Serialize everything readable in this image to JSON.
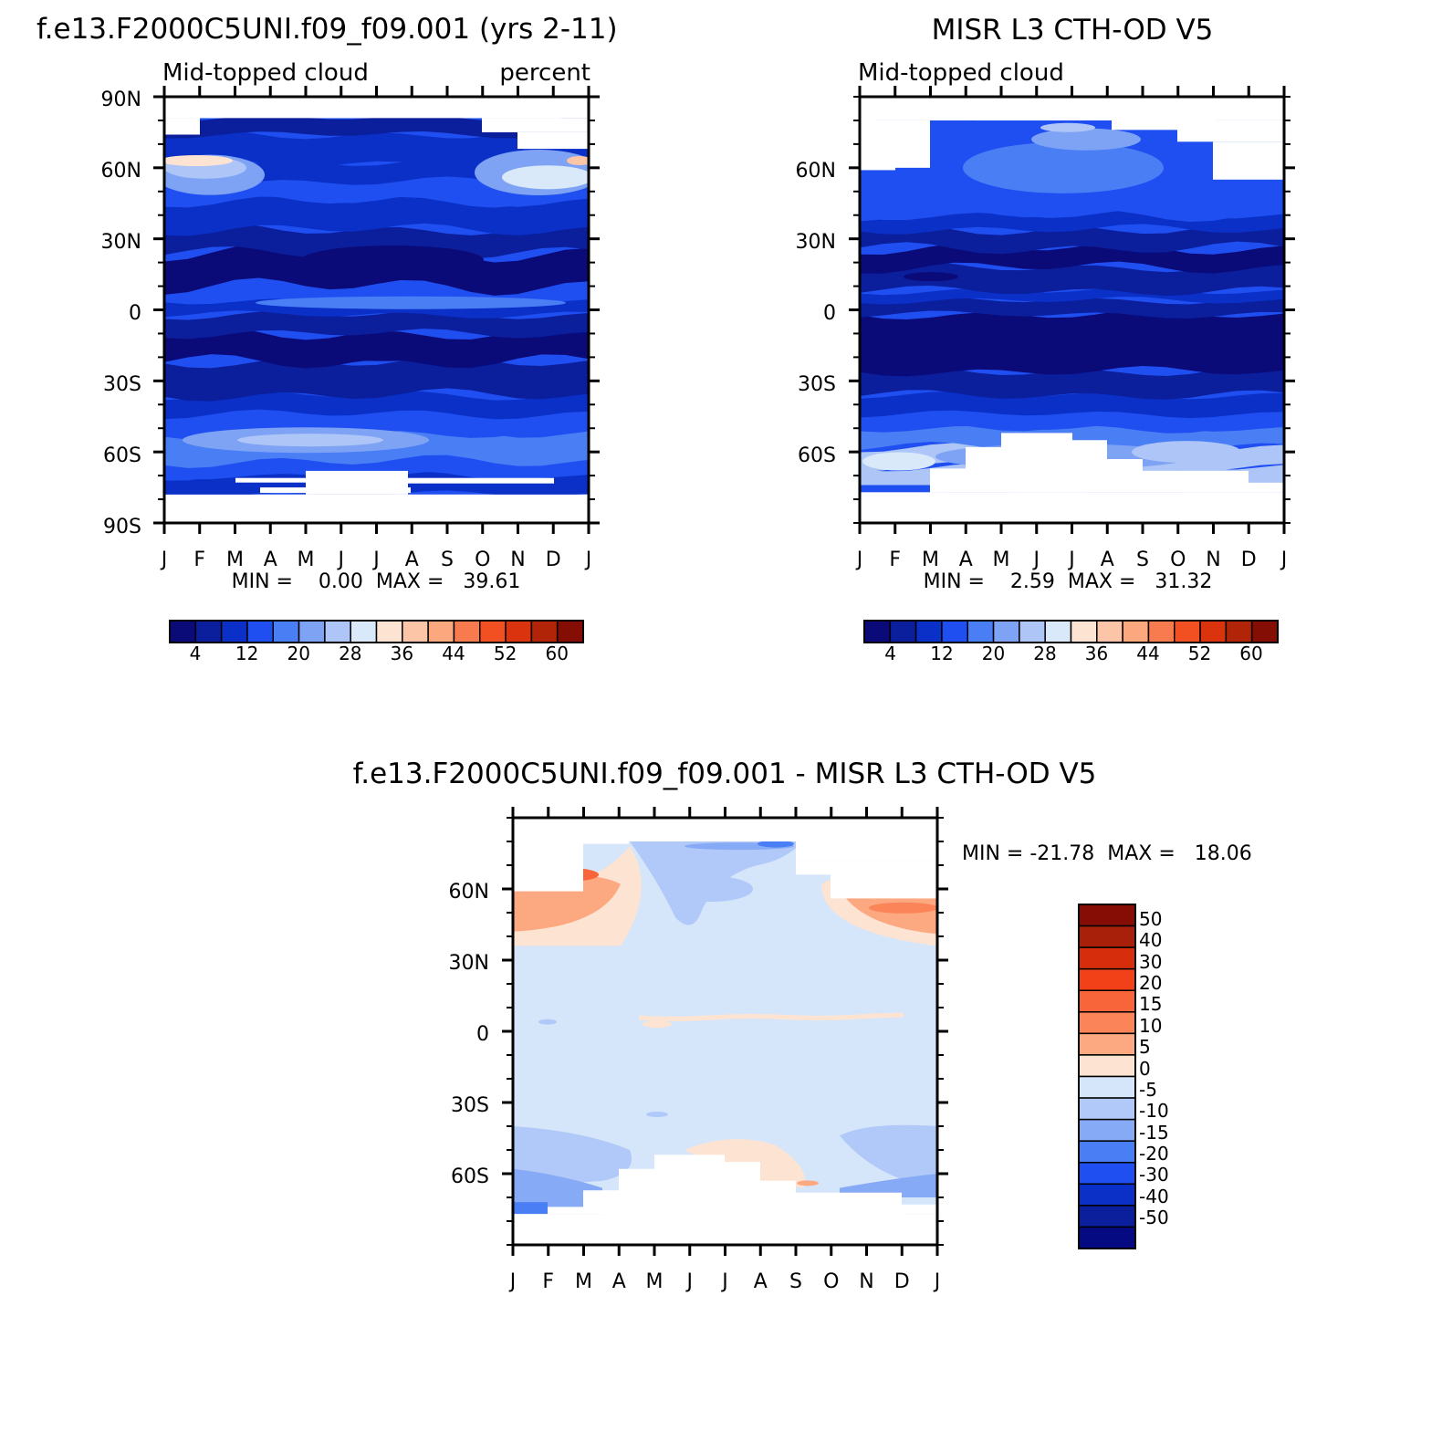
{
  "chart_data": [
    {
      "type": "heatmap",
      "title": "f.e13.F2000C5UNI.f09_f09.001 (yrs 2-11)",
      "left_label": "Mid-topped cloud",
      "right_label": "percent",
      "y_ticks": [
        "90N",
        "60N",
        "30N",
        "0",
        "30S",
        "60S",
        "90S"
      ],
      "x_ticks": [
        "J",
        "F",
        "M",
        "A",
        "M",
        "J",
        "J",
        "A",
        "S",
        "O",
        "N",
        "D",
        "J"
      ],
      "stats": "MIN =    0.00  MAX =   39.61",
      "ylim": [
        -90,
        90
      ],
      "colorbar_labels": [
        "4",
        "12",
        "20",
        "28",
        "36",
        "44",
        "52",
        "60"
      ],
      "colorbar_levels": [
        4,
        8,
        12,
        16,
        20,
        24,
        28,
        32,
        36,
        40,
        44,
        48,
        52,
        56,
        60
      ],
      "coverage": {
        "north_limit_lat": 81,
        "south_limit_lat": -78
      },
      "zonal_mean_percent": [
        [
          -78,
          14
        ],
        [
          -70,
          18
        ],
        [
          -60,
          22
        ],
        [
          -55,
          20
        ],
        [
          -45,
          14
        ],
        [
          -35,
          8
        ],
        [
          -25,
          5
        ],
        [
          -15,
          7
        ],
        [
          -5,
          10
        ],
        [
          0,
          11
        ],
        [
          5,
          14
        ],
        [
          10,
          9
        ],
        [
          20,
          4
        ],
        [
          30,
          6
        ],
        [
          45,
          14
        ],
        [
          60,
          24
        ],
        [
          70,
          16
        ],
        [
          80,
          12
        ]
      ]
    },
    {
      "type": "heatmap",
      "title": "MISR L3 CTH-OD V5",
      "left_label": "Mid-topped cloud",
      "y_ticks": [
        "60N",
        "30N",
        "0",
        "30S",
        "60S"
      ],
      "x_ticks": [
        "J",
        "F",
        "M",
        "A",
        "M",
        "J",
        "J",
        "A",
        "S",
        "O",
        "N",
        "D",
        "J"
      ],
      "stats": "MIN =    2.59  MAX =   31.32",
      "ylim": [
        -90,
        90
      ],
      "colorbar_labels": [
        "4",
        "12",
        "20",
        "28",
        "36",
        "44",
        "52",
        "60"
      ],
      "colorbar_levels": [
        4,
        8,
        12,
        16,
        20,
        24,
        28,
        32,
        36,
        40,
        44,
        48,
        52,
        56,
        60
      ],
      "coverage": {
        "north_limit_lat": 80,
        "south_limit_lat": -77
      },
      "zonal_mean_percent": [
        [
          -77,
          26
        ],
        [
          -65,
          26
        ],
        [
          -55,
          20
        ],
        [
          -45,
          13
        ],
        [
          -35,
          8
        ],
        [
          -25,
          6
        ],
        [
          -15,
          7
        ],
        [
          -5,
          9
        ],
        [
          0,
          10
        ],
        [
          5,
          13
        ],
        [
          15,
          8
        ],
        [
          25,
          5
        ],
        [
          35,
          8
        ],
        [
          45,
          14
        ],
        [
          60,
          17
        ],
        [
          70,
          20
        ],
        [
          80,
          22
        ]
      ]
    },
    {
      "type": "heatmap",
      "title": "f.e13.F2000C5UNI.f09_f09.001 - MISR L3 CTH-OD V5",
      "y_ticks": [
        "60N",
        "30N",
        "0",
        "30S",
        "60S"
      ],
      "x_ticks": [
        "J",
        "F",
        "M",
        "A",
        "M",
        "J",
        "J",
        "A",
        "S",
        "O",
        "N",
        "D",
        "J"
      ],
      "stats": "MIN = -21.78  MAX =   18.06",
      "ylim": [
        -90,
        90
      ],
      "colorbar_labels": [
        "50",
        "40",
        "30",
        "20",
        "15",
        "10",
        "5",
        "0",
        "-5",
        "-10",
        "-15",
        "-20",
        "-30",
        "-40",
        "-50"
      ],
      "colorbar_levels": [
        -50,
        -40,
        -30,
        -20,
        -15,
        -10,
        -5,
        0,
        5,
        10,
        15,
        20,
        30,
        40,
        50
      ],
      "coverage": {
        "north_limit_lat": 80,
        "south_limit_lat": -77
      },
      "zonal_mean_difference": [
        [
          -77,
          -10
        ],
        [
          -65,
          -6
        ],
        [
          -55,
          -3
        ],
        [
          -45,
          -2
        ],
        [
          -30,
          -1
        ],
        [
          -10,
          -1
        ],
        [
          5,
          1
        ],
        [
          20,
          -1
        ],
        [
          35,
          0
        ],
        [
          45,
          2
        ],
        [
          55,
          6
        ],
        [
          65,
          -3
        ],
        [
          80,
          -8
        ]
      ]
    }
  ],
  "colors": {
    "seq_palette": [
      "#0a0a78",
      "#0b1e9c",
      "#0a30c8",
      "#1f4ff0",
      "#4a7ef5",
      "#7ea3f5",
      "#aec6f7",
      "#d9e9fa",
      "#fde3d2",
      "#fcc5a8",
      "#fca77e",
      "#f87b4f",
      "#f24f22",
      "#db330e",
      "#b22407",
      "#850e04"
    ],
    "diff_palette": [
      "#060a82",
      "#0b1e9c",
      "#0a30c8",
      "#1f4ff0",
      "#4a7ef5",
      "#86aaf5",
      "#b0c9f8",
      "#d5e6fb",
      "#fde3d2",
      "#fca982",
      "#fb8558",
      "#f9653a",
      "#f24019",
      "#d62d0c",
      "#a9200a",
      "#860d05"
    ],
    "missing": "#ffffff",
    "frame": "#000000"
  }
}
